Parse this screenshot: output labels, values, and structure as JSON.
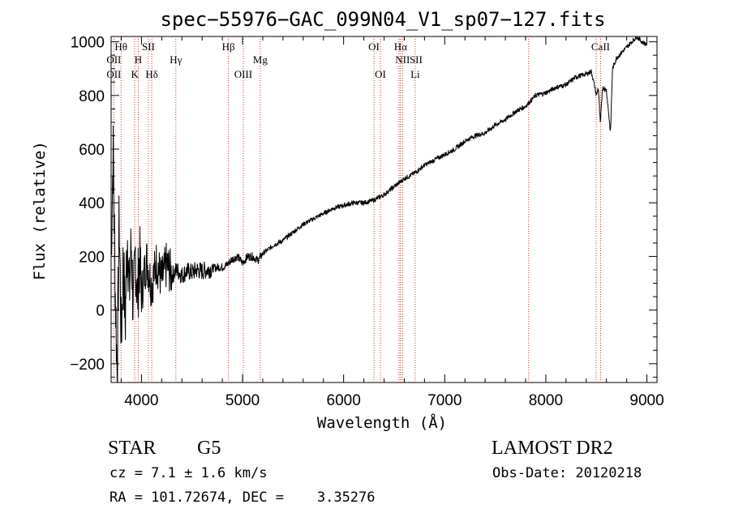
{
  "chart_data": {
    "type": "line",
    "title": "spec−55976−GAC_099N04_V1_sp07−127.fits",
    "xlabel": "Wavelength (Å)",
    "ylabel": "Flux (relative)",
    "xlim": [
      3700,
      9100
    ],
    "ylim": [
      -270,
      1020
    ],
    "xticks": [
      4000,
      5000,
      6000,
      7000,
      8000,
      9000
    ],
    "yticks": [
      -200,
      0,
      200,
      400,
      600,
      800,
      1000
    ],
    "ytick_labels": [
      "−200",
      "0",
      "200",
      "400",
      "600",
      "800",
      "1000"
    ],
    "grid": false,
    "series": [
      {
        "x": [
          3700,
          3720,
          3740,
          3760,
          3780,
          3800,
          3820,
          3840,
          3860,
          3880,
          3900,
          3920,
          3940,
          3960,
          3980,
          4000,
          4050,
          4100,
          4150,
          4200,
          4250,
          4300,
          4350,
          4400,
          4450,
          4500,
          4550,
          4600,
          4650,
          4700,
          4750,
          4800,
          4850,
          4900,
          4950,
          5000,
          5050,
          5100,
          5150,
          5200,
          5300,
          5400,
          5500,
          5600,
          5700,
          5800,
          5900,
          6000,
          6100,
          6200,
          6300,
          6400,
          6500,
          6600,
          6700,
          6800,
          6900,
          7000,
          7100,
          7200,
          7300,
          7400,
          7500,
          7600,
          7700,
          7800,
          7900,
          8000,
          8100,
          8200,
          8300,
          8400,
          8450,
          8480,
          8500,
          8520,
          8540,
          8560,
          8600,
          8640,
          8660,
          8700,
          8750,
          8800,
          8850,
          8900,
          8950,
          9000
        ],
        "y": [
          200,
          600,
          100,
          -250,
          350,
          -120,
          200,
          -50,
          300,
          60,
          250,
          -20,
          220,
          40,
          200,
          60,
          190,
          90,
          180,
          110,
          170,
          130,
          150,
          130,
          145,
          140,
          150,
          145,
          150,
          155,
          160,
          160,
          170,
          190,
          200,
          175,
          200,
          200,
          185,
          210,
          240,
          260,
          290,
          320,
          340,
          360,
          380,
          390,
          400,
          400,
          410,
          430,
          460,
          490,
          510,
          540,
          560,
          580,
          600,
          630,
          650,
          660,
          690,
          710,
          740,
          760,
          800,
          810,
          830,
          840,
          870,
          880,
          890,
          840,
          800,
          830,
          690,
          830,
          820,
          660,
          900,
          940,
          960,
          980,
          1000,
          1020,
          1000,
          990
        ]
      }
    ],
    "line_labels": [
      {
        "text": "Hθ",
        "x": 3798,
        "row": 1
      },
      {
        "text": "SII",
        "x": 4069,
        "row": 1
      },
      {
        "text": "Hβ",
        "x": 4861,
        "row": 1
      },
      {
        "text": "OI",
        "x": 6300,
        "row": 1
      },
      {
        "text": "Hα",
        "x": 6563,
        "row": 1
      },
      {
        "text": "CaII",
        "x": 8542,
        "row": 1
      },
      {
        "text": "OII",
        "x": 3727,
        "row": 2
      },
      {
        "text": "H",
        "x": 3968,
        "row": 2
      },
      {
        "text": "Hγ",
        "x": 4340,
        "row": 2
      },
      {
        "text": "Mg",
        "x": 5175,
        "row": 2
      },
      {
        "text": "NII",
        "x": 6583,
        "row": 2
      },
      {
        "text": "SII",
        "x": 6716,
        "row": 2
      },
      {
        "text": "OII",
        "x": 3727,
        "row": 3
      },
      {
        "text": "K",
        "x": 3934,
        "row": 3
      },
      {
        "text": "Hδ",
        "x": 4102,
        "row": 3
      },
      {
        "text": "OIII",
        "x": 5007,
        "row": 3
      },
      {
        "text": "OI",
        "x": 6364,
        "row": 3
      },
      {
        "text": "Li",
        "x": 6708,
        "row": 3
      }
    ],
    "marker_lines": [
      3727,
      3798,
      3934,
      3968,
      4069,
      4102,
      4340,
      4861,
      5007,
      5175,
      6300,
      6364,
      6548,
      6563,
      6583,
      6708,
      7830,
      8498,
      8542
    ]
  },
  "info": {
    "class": "STAR",
    "subclass": "G5",
    "survey": "LAMOST DR2",
    "cz": "cz = 7.1 ± 1.6 km/s",
    "obs_date": "Obs-Date: 20120218",
    "radec": "RA = 101.72674, DEC =    3.35276"
  }
}
